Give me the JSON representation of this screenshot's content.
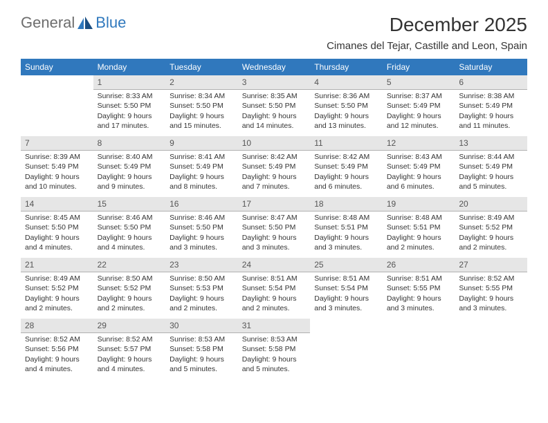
{
  "logo": {
    "general": "General",
    "blue": "Blue"
  },
  "title": "December 2025",
  "location": "Cimanes del Tejar, Castille and Leon, Spain",
  "colors": {
    "header_bg": "#3078bd",
    "header_text": "#ffffff",
    "daynum_bg": "#e6e6e6",
    "daynum_border": "#b0b0b0",
    "body_text": "#333333",
    "logo_gray": "#6d6d6d",
    "logo_blue": "#2f78bd",
    "page_bg": "#ffffff"
  },
  "day_headers": [
    "Sunday",
    "Monday",
    "Tuesday",
    "Wednesday",
    "Thursday",
    "Friday",
    "Saturday"
  ],
  "weeks": [
    [
      null,
      {
        "n": "1",
        "sr": "Sunrise: 8:33 AM",
        "ss": "Sunset: 5:50 PM",
        "d1": "Daylight: 9 hours",
        "d2": "and 17 minutes."
      },
      {
        "n": "2",
        "sr": "Sunrise: 8:34 AM",
        "ss": "Sunset: 5:50 PM",
        "d1": "Daylight: 9 hours",
        "d2": "and 15 minutes."
      },
      {
        "n": "3",
        "sr": "Sunrise: 8:35 AM",
        "ss": "Sunset: 5:50 PM",
        "d1": "Daylight: 9 hours",
        "d2": "and 14 minutes."
      },
      {
        "n": "4",
        "sr": "Sunrise: 8:36 AM",
        "ss": "Sunset: 5:50 PM",
        "d1": "Daylight: 9 hours",
        "d2": "and 13 minutes."
      },
      {
        "n": "5",
        "sr": "Sunrise: 8:37 AM",
        "ss": "Sunset: 5:49 PM",
        "d1": "Daylight: 9 hours",
        "d2": "and 12 minutes."
      },
      {
        "n": "6",
        "sr": "Sunrise: 8:38 AM",
        "ss": "Sunset: 5:49 PM",
        "d1": "Daylight: 9 hours",
        "d2": "and 11 minutes."
      }
    ],
    [
      {
        "n": "7",
        "sr": "Sunrise: 8:39 AM",
        "ss": "Sunset: 5:49 PM",
        "d1": "Daylight: 9 hours",
        "d2": "and 10 minutes."
      },
      {
        "n": "8",
        "sr": "Sunrise: 8:40 AM",
        "ss": "Sunset: 5:49 PM",
        "d1": "Daylight: 9 hours",
        "d2": "and 9 minutes."
      },
      {
        "n": "9",
        "sr": "Sunrise: 8:41 AM",
        "ss": "Sunset: 5:49 PM",
        "d1": "Daylight: 9 hours",
        "d2": "and 8 minutes."
      },
      {
        "n": "10",
        "sr": "Sunrise: 8:42 AM",
        "ss": "Sunset: 5:49 PM",
        "d1": "Daylight: 9 hours",
        "d2": "and 7 minutes."
      },
      {
        "n": "11",
        "sr": "Sunrise: 8:42 AM",
        "ss": "Sunset: 5:49 PM",
        "d1": "Daylight: 9 hours",
        "d2": "and 6 minutes."
      },
      {
        "n": "12",
        "sr": "Sunrise: 8:43 AM",
        "ss": "Sunset: 5:49 PM",
        "d1": "Daylight: 9 hours",
        "d2": "and 6 minutes."
      },
      {
        "n": "13",
        "sr": "Sunrise: 8:44 AM",
        "ss": "Sunset: 5:49 PM",
        "d1": "Daylight: 9 hours",
        "d2": "and 5 minutes."
      }
    ],
    [
      {
        "n": "14",
        "sr": "Sunrise: 8:45 AM",
        "ss": "Sunset: 5:50 PM",
        "d1": "Daylight: 9 hours",
        "d2": "and 4 minutes."
      },
      {
        "n": "15",
        "sr": "Sunrise: 8:46 AM",
        "ss": "Sunset: 5:50 PM",
        "d1": "Daylight: 9 hours",
        "d2": "and 4 minutes."
      },
      {
        "n": "16",
        "sr": "Sunrise: 8:46 AM",
        "ss": "Sunset: 5:50 PM",
        "d1": "Daylight: 9 hours",
        "d2": "and 3 minutes."
      },
      {
        "n": "17",
        "sr": "Sunrise: 8:47 AM",
        "ss": "Sunset: 5:50 PM",
        "d1": "Daylight: 9 hours",
        "d2": "and 3 minutes."
      },
      {
        "n": "18",
        "sr": "Sunrise: 8:48 AM",
        "ss": "Sunset: 5:51 PM",
        "d1": "Daylight: 9 hours",
        "d2": "and 3 minutes."
      },
      {
        "n": "19",
        "sr": "Sunrise: 8:48 AM",
        "ss": "Sunset: 5:51 PM",
        "d1": "Daylight: 9 hours",
        "d2": "and 2 minutes."
      },
      {
        "n": "20",
        "sr": "Sunrise: 8:49 AM",
        "ss": "Sunset: 5:52 PM",
        "d1": "Daylight: 9 hours",
        "d2": "and 2 minutes."
      }
    ],
    [
      {
        "n": "21",
        "sr": "Sunrise: 8:49 AM",
        "ss": "Sunset: 5:52 PM",
        "d1": "Daylight: 9 hours",
        "d2": "and 2 minutes."
      },
      {
        "n": "22",
        "sr": "Sunrise: 8:50 AM",
        "ss": "Sunset: 5:52 PM",
        "d1": "Daylight: 9 hours",
        "d2": "and 2 minutes."
      },
      {
        "n": "23",
        "sr": "Sunrise: 8:50 AM",
        "ss": "Sunset: 5:53 PM",
        "d1": "Daylight: 9 hours",
        "d2": "and 2 minutes."
      },
      {
        "n": "24",
        "sr": "Sunrise: 8:51 AM",
        "ss": "Sunset: 5:54 PM",
        "d1": "Daylight: 9 hours",
        "d2": "and 2 minutes."
      },
      {
        "n": "25",
        "sr": "Sunrise: 8:51 AM",
        "ss": "Sunset: 5:54 PM",
        "d1": "Daylight: 9 hours",
        "d2": "and 3 minutes."
      },
      {
        "n": "26",
        "sr": "Sunrise: 8:51 AM",
        "ss": "Sunset: 5:55 PM",
        "d1": "Daylight: 9 hours",
        "d2": "and 3 minutes."
      },
      {
        "n": "27",
        "sr": "Sunrise: 8:52 AM",
        "ss": "Sunset: 5:55 PM",
        "d1": "Daylight: 9 hours",
        "d2": "and 3 minutes."
      }
    ],
    [
      {
        "n": "28",
        "sr": "Sunrise: 8:52 AM",
        "ss": "Sunset: 5:56 PM",
        "d1": "Daylight: 9 hours",
        "d2": "and 4 minutes."
      },
      {
        "n": "29",
        "sr": "Sunrise: 8:52 AM",
        "ss": "Sunset: 5:57 PM",
        "d1": "Daylight: 9 hours",
        "d2": "and 4 minutes."
      },
      {
        "n": "30",
        "sr": "Sunrise: 8:53 AM",
        "ss": "Sunset: 5:58 PM",
        "d1": "Daylight: 9 hours",
        "d2": "and 5 minutes."
      },
      {
        "n": "31",
        "sr": "Sunrise: 8:53 AM",
        "ss": "Sunset: 5:58 PM",
        "d1": "Daylight: 9 hours",
        "d2": "and 5 minutes."
      },
      null,
      null,
      null
    ]
  ]
}
